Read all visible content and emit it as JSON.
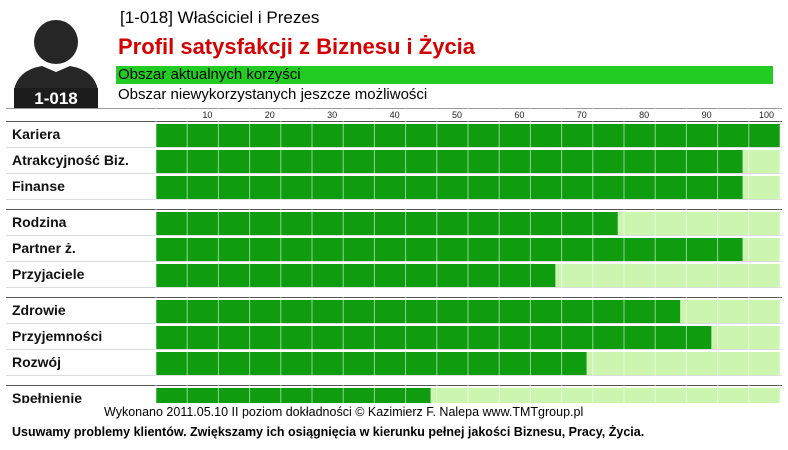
{
  "header": {
    "title": "[1-018] Właściciel i Prezes",
    "main_title": "Profil satysfakcji z Biznesu i Życia",
    "badge": "1-018"
  },
  "legend": {
    "current": "Obszar aktualnych korzyści",
    "potential": "Obszar niewykorzystanych jeszcze możliwości"
  },
  "colors": {
    "current": "#0f9d0f",
    "potential": "#ccf5b0",
    "title": "#d50000",
    "legend_bar": "#22cc22"
  },
  "icons": {
    "avatar": "person-silhouette-icon"
  },
  "chart_data": {
    "type": "bar",
    "orientation": "horizontal",
    "stacked": true,
    "xlim": [
      0,
      100
    ],
    "x_ticks": [
      10,
      20,
      30,
      40,
      50,
      60,
      70,
      80,
      90,
      100
    ],
    "grid": true,
    "groups": [
      [
        "Kariera",
        "Atrakcyjność Biz.",
        "Finanse"
      ],
      [
        "Rodzina",
        "Partner ż.",
        "Przyjaciele"
      ],
      [
        "Zdrowie",
        "Przyjemności",
        "Rozwój"
      ],
      [
        "Spełnienie"
      ]
    ],
    "categories": [
      "Kariera",
      "Atrakcyjność Biz.",
      "Finanse",
      "Rodzina",
      "Partner ż.",
      "Przyjaciele",
      "Zdrowie",
      "Przyjemności",
      "Rozwój",
      "Spełnienie"
    ],
    "series": [
      {
        "name": "Obszar aktualnych korzyści",
        "values": [
          100,
          94,
          94,
          74,
          94,
          64,
          84,
          89,
          69,
          44
        ]
      },
      {
        "name": "Obszar niewykorzystanych jeszcze możliwości",
        "values": [
          0,
          6,
          6,
          26,
          6,
          36,
          16,
          11,
          31,
          56
        ]
      }
    ]
  },
  "footer": {
    "line1": "Wykonano 2011.05.10  II poziom dokładności    © Kazimierz F. Nalepa    www.TMTgroup.pl",
    "line2": "Usuwamy problemy klientów. Zwiększamy ich osiągnięcia w kierunku pełnej jakości Biznesu, Pracy, Życia."
  }
}
